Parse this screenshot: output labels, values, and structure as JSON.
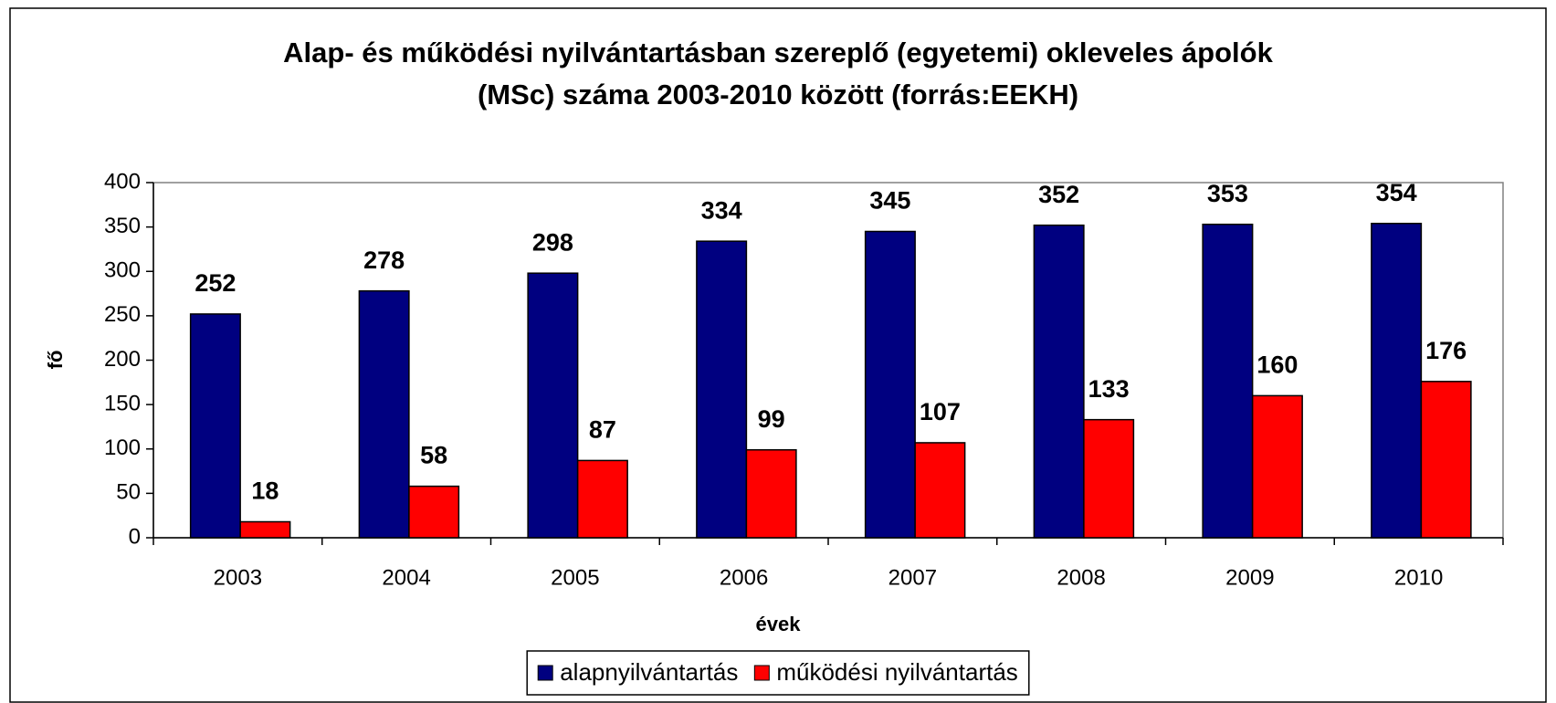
{
  "chart_data": {
    "type": "bar",
    "title": [
      "Alap- és működési nyilvántartásban szereplő (egyetemi) okleveles ápolók",
      "(MSc) száma 2003-2010 között (forrás:EEKH)"
    ],
    "x_label": "évek",
    "y_label": "fő",
    "categories": [
      "2003",
      "2004",
      "2005",
      "2006",
      "2007",
      "2008",
      "2009",
      "2010"
    ],
    "series": [
      {
        "name": "alapnyilvántartás",
        "color": "#000080",
        "values": [
          252,
          278,
          298,
          334,
          345,
          352,
          353,
          354
        ]
      },
      {
        "name": "működési nyilvántartás",
        "color": "#ff0000",
        "values": [
          18,
          58,
          87,
          99,
          107,
          133,
          160,
          176
        ]
      }
    ],
    "ylim": [
      0,
      400
    ],
    "yticks": [
      0,
      50,
      100,
      150,
      200,
      250,
      300,
      350,
      400
    ],
    "grid": false,
    "legend": "bottom"
  }
}
